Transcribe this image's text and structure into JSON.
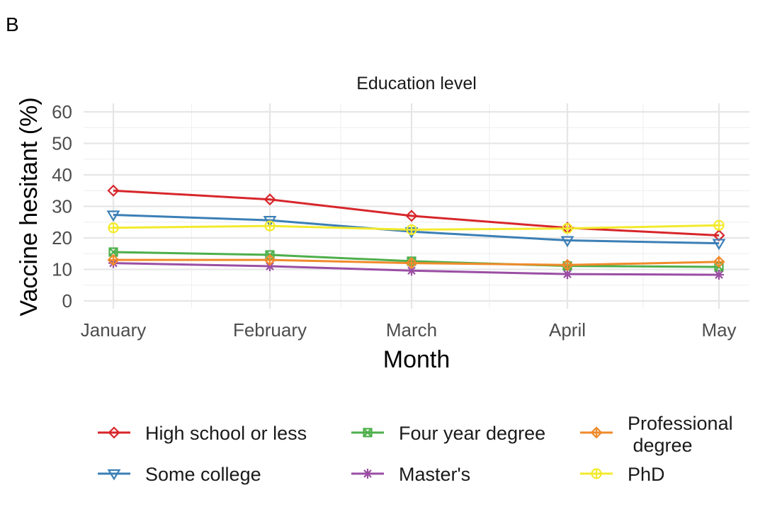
{
  "panel_label": "B",
  "chart_data": {
    "type": "line",
    "title": "Education level",
    "xlabel": "Month",
    "ylabel": "Vaccine hesitant (%)",
    "categories": [
      "January",
      "February",
      "March",
      "April",
      "May"
    ],
    "ylim": [
      0,
      60
    ],
    "yticks": [
      0,
      10,
      20,
      30,
      40,
      50,
      60
    ],
    "grid": true,
    "legend_position": "bottom",
    "series": [
      {
        "name": "High school or less",
        "color": "#d7262b",
        "marker": "diamond",
        "values": [
          35,
          32.2,
          27,
          23.2,
          20.8
        ]
      },
      {
        "name": "Some college",
        "color": "#3b7fb6",
        "marker": "triangle-down",
        "values": [
          27.3,
          25.6,
          22,
          19.2,
          18.3
        ]
      },
      {
        "name": "Four year degree",
        "color": "#4daf4a",
        "marker": "square-cross",
        "values": [
          15.5,
          14.6,
          12.6,
          11.1,
          10.8
        ]
      },
      {
        "name": "Master's",
        "color": "#9a4ea3",
        "marker": "asterisk",
        "values": [
          12,
          11,
          9.6,
          8.5,
          8.3
        ]
      },
      {
        "name": "Professional degree",
        "legend_lines": [
          "Professional",
          " degree"
        ],
        "color": "#f08a2b",
        "marker": "diamond-plus",
        "values": [
          13,
          13,
          12,
          11.4,
          12.4
        ]
      },
      {
        "name": "PhD",
        "color": "#f2ea2c",
        "marker": "circle-plus",
        "values": [
          23.2,
          23.8,
          22.6,
          23,
          24
        ]
      }
    ]
  }
}
